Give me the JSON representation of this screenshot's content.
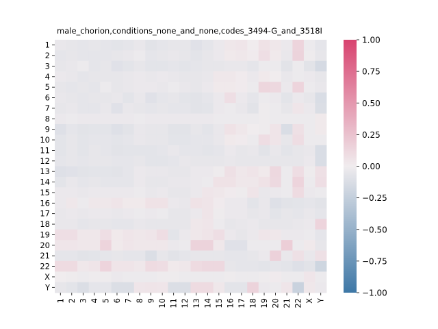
{
  "chart_data": {
    "type": "heatmap",
    "title": "male_chorion,conditions_none_and_none,codes_3494-G_and_3518I",
    "row_labels": [
      "1",
      "2",
      "3",
      "4",
      "5",
      "6",
      "7",
      "8",
      "9",
      "10",
      "11",
      "12",
      "13",
      "14",
      "15",
      "16",
      "17",
      "18",
      "19",
      "20",
      "21",
      "22",
      "X",
      "Y"
    ],
    "col_labels": [
      "1",
      "2",
      "3",
      "4",
      "5",
      "6",
      "7",
      "8",
      "9",
      "10",
      "11",
      "12",
      "13",
      "14",
      "15",
      "16",
      "17",
      "18",
      "19",
      "20",
      "21",
      "22",
      "X",
      "Y"
    ],
    "colorbar": {
      "vmin": -1.0,
      "vmax": 1.0,
      "ticks": [
        "1.00",
        "0.75",
        "0.50",
        "0.25",
        "0.00",
        "−0.25",
        "−0.50",
        "−0.75",
        "−1.00"
      ],
      "colors": {
        "negative": "#3d77a6",
        "center": "#f0ecee",
        "positive": "#d8436f"
      }
    },
    "values": [
      [
        -0.04,
        -0.05,
        -0.06,
        -0.05,
        -0.06,
        -0.07,
        -0.06,
        -0.04,
        -0.08,
        -0.06,
        -0.05,
        -0.05,
        -0.09,
        -0.06,
        -0.03,
        0.03,
        0.04,
        0.0,
        0.06,
        0.03,
        -0.03,
        0.14,
        -0.02,
        -0.06
      ],
      [
        -0.06,
        -0.05,
        -0.06,
        -0.06,
        -0.06,
        -0.05,
        -0.04,
        -0.02,
        -0.06,
        -0.05,
        -0.04,
        -0.05,
        -0.07,
        -0.05,
        -0.03,
        0.02,
        0.03,
        0.01,
        0.08,
        0.02,
        -0.04,
        0.15,
        -0.01,
        -0.05
      ],
      [
        -0.05,
        -0.04,
        -0.02,
        -0.06,
        -0.05,
        -0.09,
        -0.07,
        -0.05,
        -0.07,
        -0.07,
        -0.06,
        -0.07,
        -0.06,
        -0.05,
        -0.05,
        -0.04,
        -0.04,
        -0.06,
        -0.02,
        -0.02,
        -0.08,
        -0.02,
        -0.08,
        -0.15
      ],
      [
        -0.03,
        -0.04,
        -0.06,
        -0.05,
        -0.05,
        -0.05,
        -0.04,
        -0.03,
        -0.04,
        -0.03,
        -0.04,
        -0.05,
        -0.05,
        -0.04,
        0.03,
        0.03,
        0.01,
        -0.03,
        0.02,
        0.0,
        -0.04,
        -0.02,
        -0.03,
        -0.05
      ],
      [
        -0.05,
        -0.06,
        -0.05,
        -0.06,
        -0.02,
        -0.05,
        -0.04,
        -0.03,
        -0.03,
        -0.04,
        -0.02,
        -0.04,
        -0.05,
        -0.03,
        0.02,
        0.02,
        0.01,
        -0.02,
        0.13,
        0.12,
        -0.03,
        0.14,
        -0.02,
        -0.04
      ],
      [
        -0.04,
        -0.05,
        -0.06,
        -0.05,
        -0.05,
        -0.04,
        -0.07,
        -0.04,
        -0.09,
        -0.06,
        -0.05,
        -0.07,
        -0.08,
        -0.06,
        -0.03,
        0.08,
        -0.03,
        -0.06,
        -0.02,
        -0.03,
        -0.07,
        -0.03,
        -0.05,
        -0.13
      ],
      [
        -0.05,
        -0.04,
        -0.06,
        -0.06,
        -0.04,
        -0.09,
        -0.04,
        -0.05,
        -0.06,
        -0.05,
        -0.06,
        -0.06,
        -0.08,
        -0.07,
        -0.03,
        -0.02,
        -0.04,
        -0.08,
        -0.01,
        -0.02,
        -0.05,
        0.04,
        -0.03,
        -0.12
      ],
      [
        -0.03,
        -0.02,
        -0.03,
        -0.03,
        -0.03,
        -0.03,
        -0.03,
        -0.02,
        -0.03,
        -0.03,
        -0.03,
        -0.03,
        -0.03,
        -0.03,
        -0.02,
        -0.02,
        -0.02,
        -0.02,
        -0.01,
        -0.02,
        -0.02,
        -0.02,
        -0.02,
        0.02
      ],
      [
        -0.1,
        -0.06,
        -0.08,
        -0.07,
        -0.07,
        -0.1,
        -0.08,
        -0.04,
        -0.05,
        -0.05,
        -0.08,
        -0.08,
        -0.05,
        -0.07,
        -0.04,
        0.06,
        0.03,
        0.0,
        -0.01,
        0.05,
        -0.13,
        0.07,
        -0.02,
        0.02
      ],
      [
        -0.07,
        -0.05,
        -0.07,
        -0.06,
        -0.06,
        -0.07,
        -0.06,
        -0.04,
        -0.05,
        -0.05,
        -0.07,
        -0.07,
        -0.06,
        -0.06,
        -0.04,
        0.02,
        0.01,
        -0.02,
        0.09,
        0.05,
        -0.05,
        0.09,
        -0.02,
        -0.02
      ],
      [
        -0.07,
        -0.05,
        -0.07,
        -0.05,
        -0.06,
        -0.08,
        -0.07,
        -0.07,
        -0.07,
        -0.06,
        -0.04,
        -0.06,
        -0.06,
        -0.07,
        -0.06,
        -0.03,
        -0.05,
        -0.04,
        -0.08,
        -0.04,
        -0.07,
        -0.05,
        -0.04,
        -0.13
      ],
      [
        -0.06,
        -0.05,
        -0.06,
        -0.05,
        -0.05,
        -0.06,
        -0.06,
        -0.05,
        -0.07,
        -0.07,
        -0.06,
        -0.04,
        -0.05,
        -0.05,
        -0.05,
        -0.04,
        -0.05,
        -0.05,
        -0.05,
        -0.05,
        -0.05,
        -0.05,
        -0.03,
        -0.13
      ],
      [
        -0.1,
        -0.09,
        -0.08,
        -0.07,
        -0.07,
        -0.08,
        -0.06,
        -0.03,
        -0.04,
        -0.04,
        -0.05,
        -0.05,
        -0.03,
        -0.03,
        -0.01,
        0.07,
        0.03,
        0.05,
        0.02,
        0.12,
        -0.02,
        0.09,
        -0.01,
        0.07
      ],
      [
        -0.07,
        -0.04,
        -0.06,
        -0.05,
        -0.06,
        -0.06,
        -0.06,
        -0.03,
        -0.05,
        -0.05,
        -0.04,
        -0.04,
        -0.03,
        -0.02,
        0.06,
        0.06,
        0.03,
        0.03,
        0.06,
        0.11,
        -0.02,
        0.14,
        -0.02,
        0.08
      ],
      [
        -0.03,
        -0.03,
        -0.04,
        -0.03,
        -0.03,
        -0.03,
        -0.03,
        -0.02,
        -0.04,
        -0.03,
        -0.05,
        -0.05,
        -0.03,
        0.04,
        0.03,
        0.01,
        -0.01,
        0.05,
        -0.04,
        -0.03,
        -0.02,
        0.1,
        -0.03,
        -0.02
      ],
      [
        -0.03,
        0.03,
        -0.02,
        0.03,
        0.03,
        0.05,
        0.02,
        0.02,
        0.06,
        0.06,
        -0.03,
        -0.04,
        0.06,
        0.05,
        0.01,
        -0.03,
        -0.03,
        -0.07,
        -0.04,
        -0.1,
        -0.08,
        -0.07,
        -0.06,
        -0.08
      ],
      [
        -0.04,
        -0.03,
        -0.04,
        -0.03,
        -0.03,
        -0.04,
        -0.03,
        -0.02,
        -0.03,
        -0.02,
        -0.05,
        -0.05,
        -0.03,
        0.05,
        -0.01,
        -0.03,
        -0.03,
        -0.05,
        -0.04,
        -0.07,
        -0.05,
        -0.06,
        -0.04,
        -0.06
      ],
      [
        -0.04,
        -0.04,
        -0.06,
        -0.05,
        -0.05,
        -0.06,
        -0.06,
        -0.04,
        -0.05,
        -0.05,
        -0.05,
        -0.05,
        0.03,
        0.04,
        -0.02,
        -0.05,
        -0.04,
        -0.03,
        -0.05,
        -0.05,
        -0.05,
        -0.04,
        -0.03,
        0.14
      ],
      [
        0.08,
        0.08,
        0.03,
        0.03,
        0.08,
        0.02,
        0.04,
        0.03,
        0.04,
        0.09,
        -0.07,
        -0.03,
        0.03,
        0.05,
        0.08,
        -0.03,
        -0.05,
        -0.03,
        0.04,
        0.03,
        -0.03,
        -0.03,
        -0.02,
        -0.06
      ],
      [
        0.04,
        0.04,
        0.03,
        0.03,
        0.14,
        0.02,
        0.04,
        0.03,
        0.03,
        0.03,
        -0.03,
        -0.02,
        0.15,
        0.15,
        0.03,
        -0.09,
        -0.09,
        -0.02,
        -0.02,
        -0.02,
        0.18,
        -0.02,
        0.02,
        -0.05
      ],
      [
        -0.06,
        -0.06,
        -0.08,
        -0.07,
        -0.06,
        -0.05,
        -0.06,
        -0.06,
        -0.12,
        -0.05,
        -0.08,
        -0.06,
        -0.05,
        -0.05,
        -0.05,
        -0.06,
        -0.06,
        -0.05,
        -0.03,
        0.16,
        -0.04,
        0.07,
        -0.04,
        0.07
      ],
      [
        0.1,
        0.1,
        0.03,
        0.05,
        0.14,
        0.05,
        0.05,
        0.03,
        0.1,
        0.09,
        0.02,
        0.03,
        0.1,
        0.12,
        0.12,
        -0.05,
        -0.06,
        -0.06,
        -0.07,
        -0.06,
        -0.07,
        -0.1,
        -0.08,
        -0.19
      ],
      [
        0.0,
        -0.01,
        -0.02,
        -0.01,
        -0.01,
        -0.03,
        -0.02,
        -0.02,
        -0.02,
        -0.01,
        -0.01,
        -0.02,
        -0.02,
        -0.02,
        -0.02,
        -0.01,
        -0.02,
        -0.02,
        -0.01,
        0.01,
        -0.02,
        -0.02,
        0.04,
        -0.02
      ],
      [
        -0.05,
        -0.07,
        -0.12,
        -0.06,
        -0.06,
        -0.12,
        -0.12,
        0.04,
        0.05,
        0.04,
        -0.12,
        -0.12,
        0.1,
        0.1,
        0.03,
        -0.07,
        -0.07,
        0.15,
        -0.03,
        -0.02,
        0.04,
        -0.22,
        0.03,
        -0.03
      ]
    ]
  }
}
